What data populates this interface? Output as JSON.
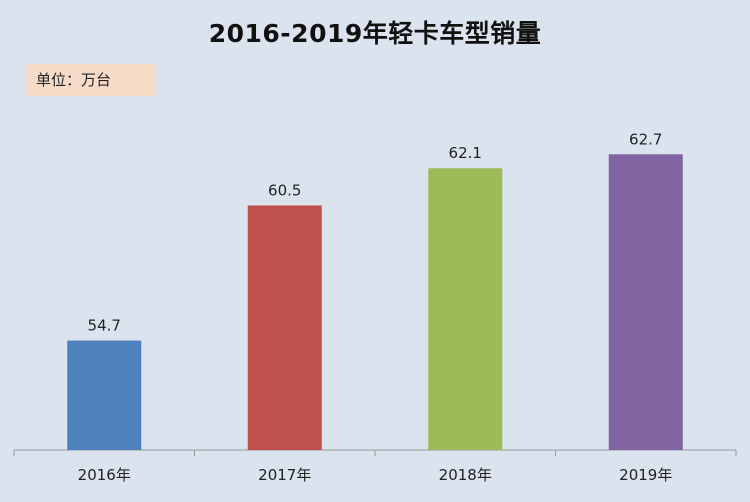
{
  "chart_data": {
    "type": "bar",
    "title": "2016-2019年轻卡车型销量",
    "unit_label": "单位：万台",
    "categories": [
      "2016年",
      "2017年",
      "2018年",
      "2019年"
    ],
    "values": [
      54.7,
      60.5,
      62.1,
      62.7
    ],
    "value_labels": [
      "54.7",
      "60.5",
      "62.1",
      "62.7"
    ],
    "colors": [
      "#4f81bd",
      "#c0504d",
      "#9bbb59",
      "#8064a2"
    ],
    "ylim": [
      50,
      64
    ],
    "grid": false,
    "legend": "none"
  }
}
